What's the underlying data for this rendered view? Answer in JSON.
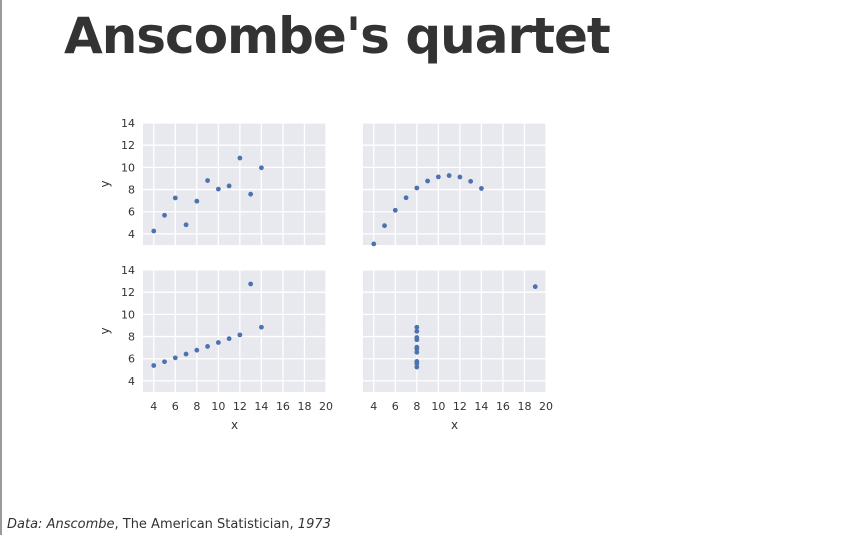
{
  "page": {
    "title": "Anscombe's quartet",
    "caption": {
      "prefix": "Data:",
      "author": "Anscombe",
      "journal": "The American Statistician",
      "year": "1973"
    }
  },
  "chart_data": {
    "type": "scatter",
    "layout": "2x2 grid, shared x axes per column, shared y axes per row",
    "style": {
      "background": "#e8e8ef",
      "grid": true,
      "grid_color": "#ffffff",
      "point_color": "#4c72b0"
    },
    "xlim": [
      3,
      20
    ],
    "xticks": [
      4,
      6,
      8,
      10,
      12,
      14,
      16,
      18,
      20
    ],
    "xlabel": "x",
    "ylabel": "y",
    "panels": [
      {
        "ylim": [
          3,
          14
        ],
        "yticks": [
          4,
          6,
          8,
          10,
          12,
          14
        ],
        "x": [
          10,
          8,
          13,
          9,
          11,
          14,
          6,
          4,
          12,
          7,
          5
        ],
        "y": [
          8.04,
          6.95,
          7.58,
          8.81,
          8.33,
          9.96,
          7.24,
          4.26,
          10.84,
          4.82,
          5.68
        ]
      },
      {
        "ylim": [
          3,
          14
        ],
        "yticks": [
          4,
          6,
          8,
          10,
          12,
          14
        ],
        "x": [
          10,
          8,
          13,
          9,
          11,
          14,
          6,
          4,
          12,
          7,
          5
        ],
        "y": [
          9.14,
          8.14,
          8.74,
          8.77,
          9.26,
          8.1,
          6.13,
          3.1,
          9.13,
          7.26,
          4.74
        ]
      },
      {
        "ylim": [
          3,
          14
        ],
        "yticks": [
          4,
          6,
          8,
          10,
          12,
          14
        ],
        "x": [
          10,
          8,
          13,
          9,
          11,
          14,
          6,
          4,
          12,
          7,
          5
        ],
        "y": [
          7.46,
          6.77,
          12.74,
          7.11,
          7.81,
          8.84,
          6.08,
          5.39,
          8.15,
          6.42,
          5.73
        ]
      },
      {
        "ylim": [
          3,
          14
        ],
        "yticks": [
          4,
          6,
          8,
          10,
          12,
          14
        ],
        "x": [
          8,
          8,
          8,
          8,
          8,
          8,
          8,
          19,
          8,
          8,
          8
        ],
        "y": [
          6.58,
          5.76,
          7.71,
          8.84,
          8.47,
          7.04,
          5.25,
          12.5,
          5.56,
          7.91,
          6.89
        ]
      }
    ]
  }
}
